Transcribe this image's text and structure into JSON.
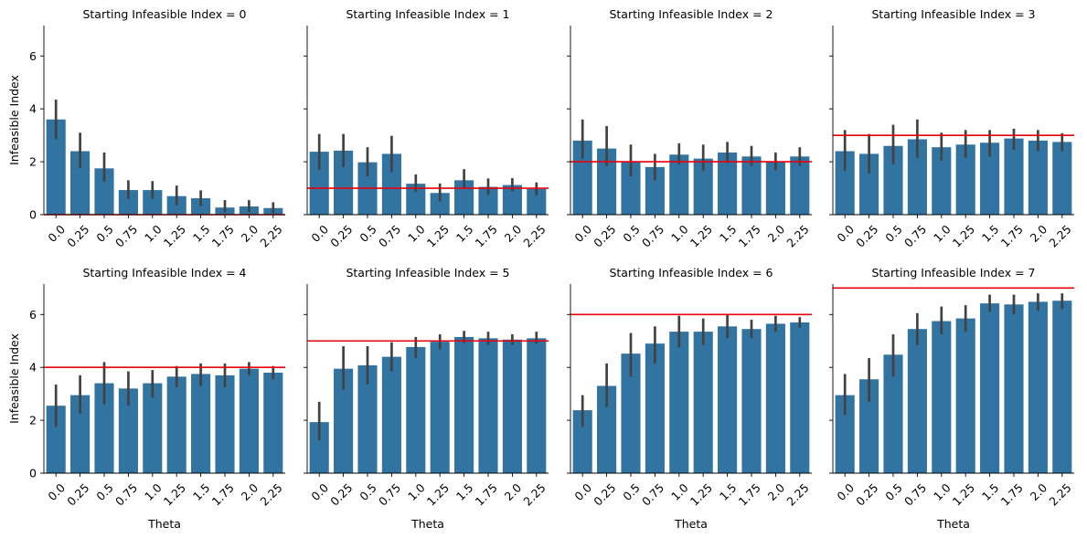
{
  "figure": {
    "bar_color": "#3274a1",
    "error_color": "#424242",
    "reference_line_color": "#e8000b",
    "y_label": "Infeasible Index",
    "x_label": "Theta"
  },
  "chart_data": {
    "type": "bar",
    "layout": "facet-grid 2x4, shared y axis",
    "categories": [
      "0.0",
      "0.25",
      "0.5",
      "0.75",
      "1.0",
      "1.25",
      "1.5",
      "1.75",
      "2.0",
      "2.25"
    ],
    "xlabel": "Theta",
    "ylabel": "Infeasible Index",
    "ylim": [
      0,
      7.15
    ],
    "yticks": [
      0,
      2,
      4,
      6
    ],
    "grid": false,
    "panels": [
      {
        "title": "Starting Infeasible Index = 0",
        "reference": 0,
        "values": [
          3.6,
          2.4,
          1.75,
          0.93,
          0.93,
          0.7,
          0.62,
          0.27,
          0.31,
          0.25
        ],
        "ci": [
          [
            2.85,
            4.35
          ],
          [
            1.75,
            3.1
          ],
          [
            1.25,
            2.35
          ],
          [
            0.6,
            1.3
          ],
          [
            0.6,
            1.27
          ],
          [
            0.35,
            1.1
          ],
          [
            0.33,
            0.92
          ],
          [
            0.08,
            0.55
          ],
          [
            0.1,
            0.55
          ],
          [
            0.05,
            0.47
          ]
        ]
      },
      {
        "title": "Starting Infeasible Index = 1",
        "reference": 1,
        "values": [
          2.38,
          2.42,
          1.98,
          2.3,
          1.17,
          0.82,
          1.3,
          1.05,
          1.12,
          0.97
        ],
        "ci": [
          [
            1.7,
            3.05
          ],
          [
            1.8,
            3.05
          ],
          [
            1.45,
            2.55
          ],
          [
            1.6,
            2.98
          ],
          [
            0.85,
            1.52
          ],
          [
            0.5,
            1.18
          ],
          [
            0.97,
            1.72
          ],
          [
            0.75,
            1.37
          ],
          [
            0.88,
            1.38
          ],
          [
            0.73,
            1.22
          ]
        ]
      },
      {
        "title": "Starting Infeasible Index = 2",
        "reference": 2,
        "values": [
          2.8,
          2.5,
          2.0,
          1.8,
          2.27,
          2.12,
          2.35,
          2.2,
          2.0,
          2.2
        ],
        "ci": [
          [
            2.1,
            3.6
          ],
          [
            1.85,
            3.35
          ],
          [
            1.45,
            2.65
          ],
          [
            1.3,
            2.3
          ],
          [
            1.9,
            2.7
          ],
          [
            1.65,
            2.65
          ],
          [
            1.95,
            2.75
          ],
          [
            1.85,
            2.6
          ],
          [
            1.68,
            2.35
          ],
          [
            1.85,
            2.55
          ]
        ]
      },
      {
        "title": "Starting Infeasible Index = 3",
        "reference": 3,
        "values": [
          2.4,
          2.3,
          2.6,
          2.85,
          2.55,
          2.65,
          2.72,
          2.88,
          2.8,
          2.75
        ],
        "ci": [
          [
            1.65,
            3.2
          ],
          [
            1.55,
            3.05
          ],
          [
            1.9,
            3.4
          ],
          [
            2.15,
            3.6
          ],
          [
            2.05,
            3.1
          ],
          [
            2.15,
            3.2
          ],
          [
            2.2,
            3.2
          ],
          [
            2.45,
            3.25
          ],
          [
            2.4,
            3.2
          ],
          [
            2.4,
            3.08
          ]
        ]
      },
      {
        "title": "Starting Infeasible Index = 4",
        "reference": 4,
        "values": [
          2.55,
          2.95,
          3.4,
          3.2,
          3.4,
          3.65,
          3.75,
          3.7,
          3.95,
          3.8
        ],
        "ci": [
          [
            1.75,
            3.35
          ],
          [
            2.25,
            3.7
          ],
          [
            2.6,
            4.2
          ],
          [
            2.55,
            3.85
          ],
          [
            2.85,
            3.9
          ],
          [
            3.25,
            4.05
          ],
          [
            3.3,
            4.15
          ],
          [
            3.25,
            4.15
          ],
          [
            3.7,
            4.2
          ],
          [
            3.55,
            4.05
          ]
        ]
      },
      {
        "title": "Starting Infeasible Index = 5",
        "reference": 5,
        "values": [
          1.93,
          3.95,
          4.08,
          4.4,
          4.77,
          4.97,
          5.15,
          5.1,
          5.05,
          5.1
        ],
        "ci": [
          [
            1.25,
            2.7
          ],
          [
            3.15,
            4.8
          ],
          [
            3.35,
            4.8
          ],
          [
            3.85,
            4.95
          ],
          [
            4.35,
            5.15
          ],
          [
            4.68,
            5.25
          ],
          [
            4.92,
            5.38
          ],
          [
            4.85,
            5.35
          ],
          [
            4.85,
            5.25
          ],
          [
            4.9,
            5.35
          ]
        ]
      },
      {
        "title": "Starting Infeasible Index = 6",
        "reference": 6,
        "values": [
          2.38,
          3.3,
          4.52,
          4.9,
          5.35,
          5.35,
          5.55,
          5.45,
          5.65,
          5.7
        ],
        "ci": [
          [
            1.75,
            2.95
          ],
          [
            2.5,
            4.15
          ],
          [
            3.65,
            5.3
          ],
          [
            4.15,
            5.55
          ],
          [
            4.75,
            5.95
          ],
          [
            4.85,
            5.85
          ],
          [
            5.1,
            6.0
          ],
          [
            5.1,
            5.8
          ],
          [
            5.35,
            5.95
          ],
          [
            5.5,
            5.9
          ]
        ]
      },
      {
        "title": "Starting Infeasible Index = 7",
        "reference": 7,
        "values": [
          2.95,
          3.55,
          4.48,
          5.45,
          5.75,
          5.85,
          6.42,
          6.38,
          6.48,
          6.52
        ],
        "ci": [
          [
            2.2,
            3.75
          ],
          [
            2.7,
            4.35
          ],
          [
            3.65,
            5.25
          ],
          [
            4.85,
            6.05
          ],
          [
            5.25,
            6.3
          ],
          [
            5.35,
            6.35
          ],
          [
            6.1,
            6.75
          ],
          [
            6.0,
            6.75
          ],
          [
            6.15,
            6.8
          ],
          [
            6.2,
            6.8
          ]
        ]
      }
    ]
  }
}
